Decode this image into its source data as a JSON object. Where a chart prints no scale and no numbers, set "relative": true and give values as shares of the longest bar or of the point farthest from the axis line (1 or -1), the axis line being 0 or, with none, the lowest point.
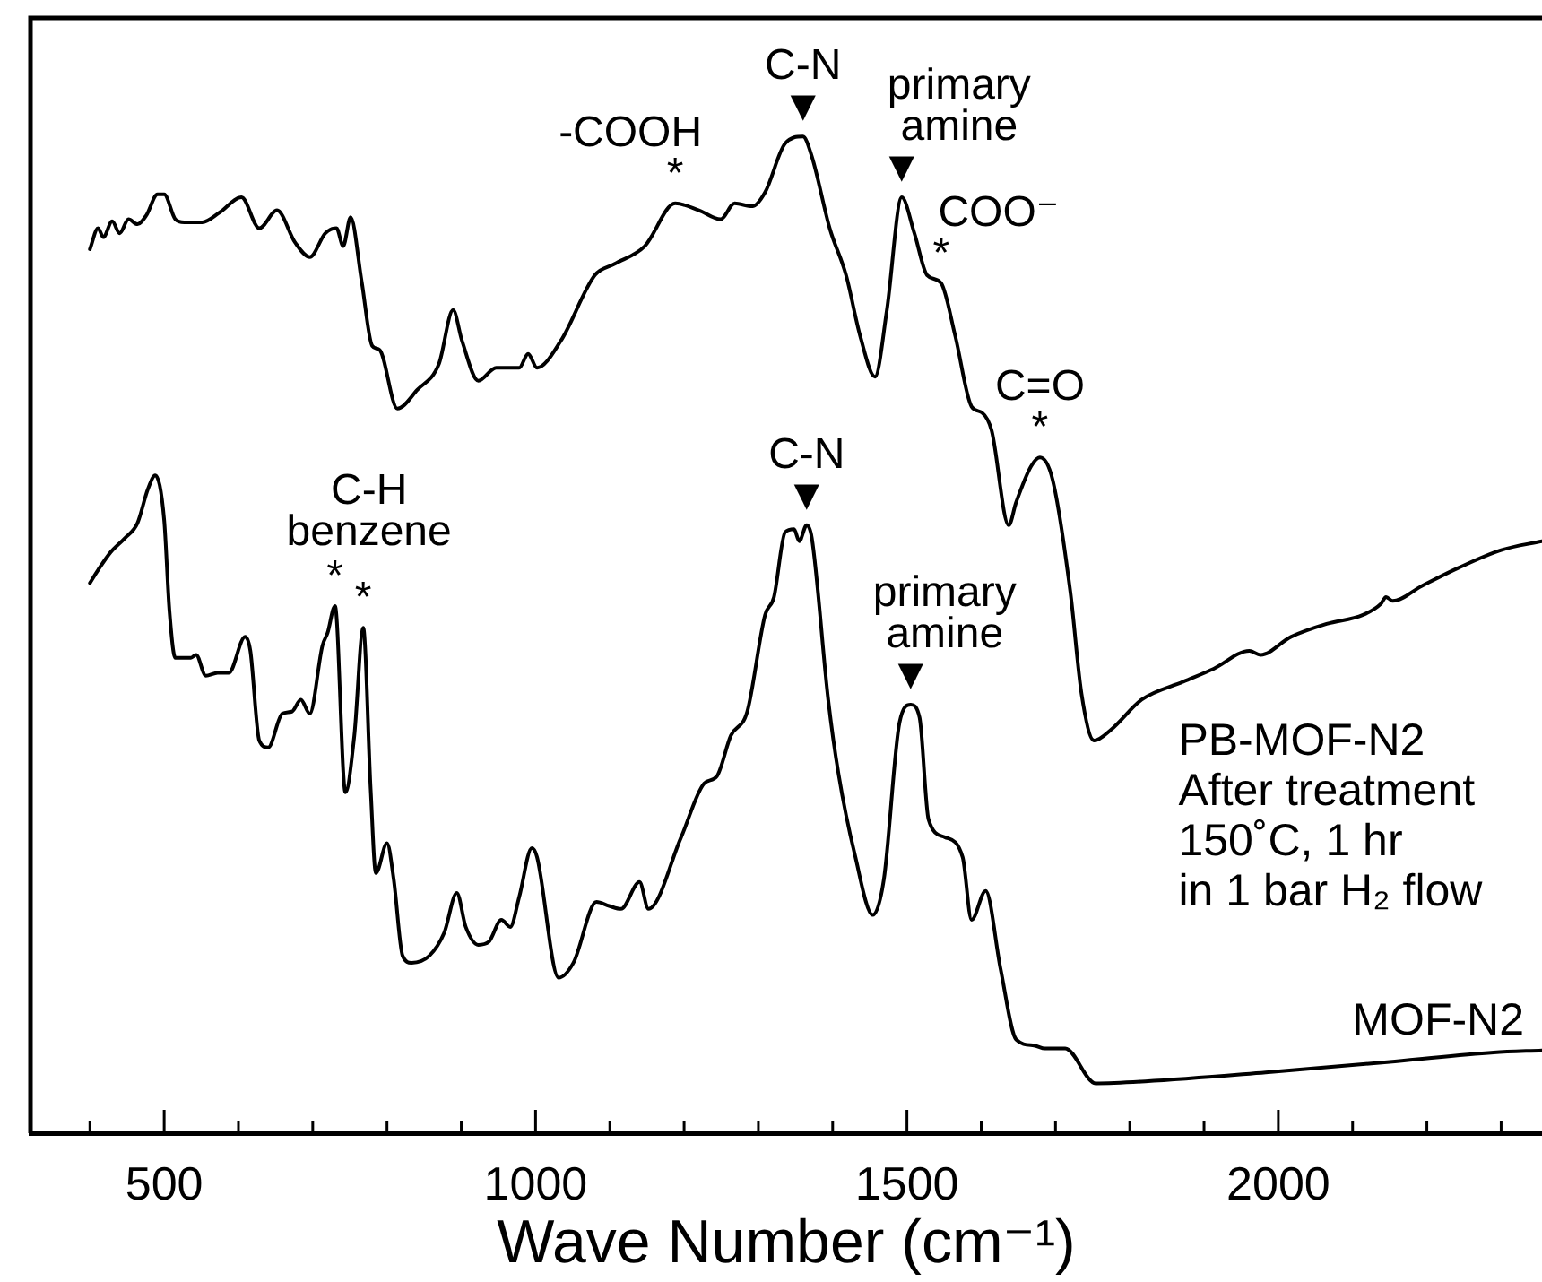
{
  "chart_data": {
    "type": "line",
    "relative": true,
    "xlabel": "Wave Number (cm⁻¹)",
    "xlim": [
      320,
      2355
    ],
    "xticks": [
      {
        "value": 400,
        "label": null
      },
      500,
      {
        "value": 600,
        "label": null
      },
      {
        "value": 700,
        "label": null
      },
      {
        "value": 800,
        "label": null
      },
      {
        "value": 900,
        "label": null
      },
      1000,
      {
        "value": 1100,
        "label": null
      },
      {
        "value": 1200,
        "label": null
      },
      {
        "value": 1300,
        "label": null
      },
      {
        "value": 1400,
        "label": null
      },
      1500,
      {
        "value": 1600,
        "label": null
      },
      {
        "value": 1700,
        "label": null
      },
      {
        "value": 1800,
        "label": null
      },
      {
        "value": 1900,
        "label": null
      },
      2000,
      {
        "value": 2100,
        "label": null
      },
      {
        "value": 2200,
        "label": null
      },
      {
        "value": 2300,
        "label": null
      }
    ],
    "series": [
      {
        "name": "PB-MOF-N2",
        "color": "#000000",
        "x": [
          400,
          411,
          418,
          430,
          440,
          452,
          464,
          476,
          491,
          500,
          515,
          527,
          551,
          575,
          604,
          628,
          652,
          676,
          696,
          717,
          732,
          741,
          751,
          766,
          780,
          790,
          814,
          841,
          870,
          889,
          901,
          923,
          947,
          978,
          990,
          1002,
          1034,
          1080,
          1106,
          1147,
          1188,
          1220,
          1249,
          1268,
          1292,
          1309,
          1336,
          1360,
          1372,
          1396,
          1418,
          1437,
          1457,
          1473,
          1493,
          1510,
          1527,
          1546,
          1565,
          1587,
          1601,
          1614,
          1637,
          1647,
          1667,
          1679,
          1696,
          1720,
          1735,
          1752,
          1775,
          1816,
          1872,
          1913,
          1961,
          1976,
          2017,
          2065,
          2114,
          2138,
          2145,
          2154,
          2193,
          2242,
          2300,
          2355
        ],
        "values": [
          0.887,
          0.908,
          0.899,
          0.915,
          0.903,
          0.917,
          0.912,
          0.921,
          0.942,
          0.942,
          0.917,
          0.914,
          0.914,
          0.924,
          0.939,
          0.908,
          0.926,
          0.894,
          0.879,
          0.903,
          0.908,
          0.89,
          0.919,
          0.854,
          0.79,
          0.786,
          0.727,
          0.746,
          0.772,
          0.826,
          0.795,
          0.755,
          0.768,
          0.768,
          0.782,
          0.768,
          0.795,
          0.861,
          0.872,
          0.89,
          0.933,
          0.926,
          0.917,
          0.933,
          0.93,
          0.944,
          0.993,
          1.0,
          0.98,
          0.908,
          0.861,
          0.8,
          0.759,
          0.826,
          0.939,
          0.903,
          0.861,
          0.853,
          0.8,
          0.729,
          0.723,
          0.705,
          0.61,
          0.633,
          0.669,
          0.678,
          0.656,
          0.543,
          0.441,
          0.394,
          0.405,
          0.435,
          0.453,
          0.466,
          0.484,
          0.48,
          0.498,
          0.511,
          0.52,
          0.531,
          0.538,
          0.534,
          0.549,
          0.567,
          0.585,
          0.594
        ]
      },
      {
        "name": "MOF-N2",
        "color": "#000000",
        "x": [
          400,
          411,
          428,
          447,
          464,
          478,
          488,
          500,
          507,
          515,
          536,
          543,
          556,
          572,
          587,
          609,
          616,
          628,
          640,
          659,
          672,
          684,
          696,
          713,
          720,
          730,
          744,
          756,
          768,
          778,
          785,
          800,
          809,
          821,
          833,
          857,
          877,
          894,
          906,
          923,
          937,
          954,
          966,
          978,
          995,
          1002,
          1031,
          1051,
          1082,
          1099,
          1115,
          1140,
          1152,
          1196,
          1227,
          1244,
          1263,
          1285,
          1309,
          1321,
          1336,
          1348,
          1355,
          1365,
          1372,
          1394,
          1408,
          1430,
          1454,
          1469,
          1490,
          1505,
          1517,
          1529,
          1551,
          1575,
          1587,
          1606,
          1626,
          1647,
          1671,
          1686,
          1713,
          1754,
          1821,
          1983,
          2157,
          2290,
          2355
        ],
        "values": [
          0.552,
          0.565,
          0.583,
          0.597,
          0.612,
          0.646,
          0.66,
          0.615,
          0.525,
          0.477,
          0.477,
          0.48,
          0.459,
          0.462,
          0.462,
          0.498,
          0.484,
          0.394,
          0.387,
          0.421,
          0.423,
          0.435,
          0.421,
          0.489,
          0.502,
          0.529,
          0.342,
          0.399,
          0.507,
          0.345,
          0.261,
          0.291,
          0.255,
          0.178,
          0.171,
          0.178,
          0.201,
          0.241,
          0.207,
          0.189,
          0.192,
          0.214,
          0.207,
          0.237,
          0.286,
          0.277,
          0.156,
          0.171,
          0.232,
          0.228,
          0.225,
          0.252,
          0.225,
          0.297,
          0.351,
          0.358,
          0.399,
          0.423,
          0.52,
          0.538,
          0.603,
          0.606,
          0.594,
          0.61,
          0.597,
          0.435,
          0.36,
          0.279,
          0.219,
          0.255,
          0.412,
          0.43,
          0.417,
          0.315,
          0.297,
          0.277,
          0.214,
          0.243,
          0.165,
          0.094,
          0.088,
          0.085,
          0.085,
          0.05,
          0.052,
          0.061,
          0.072,
          0.081,
          0.083
        ]
      }
    ],
    "annotations": [
      {
        "text": "-COOH\n*",
        "x": 1188,
        "y": 0.933
      },
      {
        "text": "C-N\n▼",
        "x": 1360,
        "y": 1.0
      },
      {
        "text": "primary\namine\n▼",
        "x": 1493,
        "y": 0.939
      },
      {
        "text": "COO⁻\n*",
        "x": 1546,
        "y": 0.853
      },
      {
        "text": "C=O\n*",
        "x": 1679,
        "y": 0.678
      },
      {
        "text": "C-H\nbenzene",
        "x": 730,
        "y": 0.529
      },
      {
        "text": "*",
        "x": 730,
        "y": 0.529
      },
      {
        "text": "*",
        "x": 768,
        "y": 0.507
      },
      {
        "text": "C-N\n▼",
        "x": 1365,
        "y": 0.61
      },
      {
        "text": "primary\namine\n▼",
        "x": 1505,
        "y": 0.43
      },
      "After treatment\n150˚C, 1 hr\nin 1 bar H₂ flow"
    ]
  }
}
